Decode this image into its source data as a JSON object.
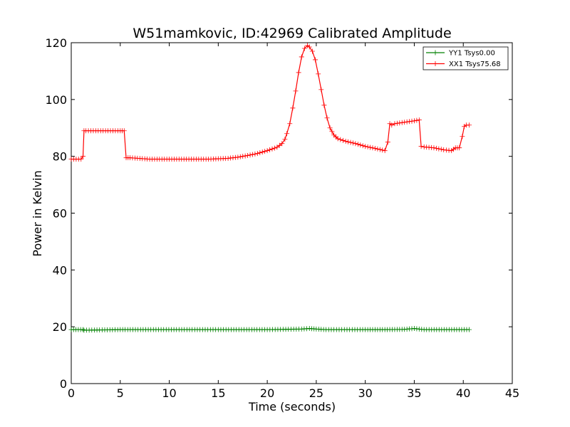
{
  "chart_data": {
    "type": "line",
    "title": "W51mamkovic, ID:42969 Calibrated Amplitude",
    "xlabel": "Time (seconds)",
    "ylabel": "Power in Kelvin",
    "xlim": [
      0,
      45
    ],
    "ylim": [
      0,
      120
    ],
    "xticks": [
      "0",
      "5",
      "10",
      "15",
      "20",
      "25",
      "30",
      "35",
      "40",
      "45"
    ],
    "yticks": [
      "0",
      "20",
      "40",
      "60",
      "80",
      "100",
      "120"
    ],
    "grid": false,
    "legend_position": "top-right",
    "series": [
      {
        "name": "YY1 Tsys0.00",
        "color": "#008000",
        "marker": "+",
        "x": [
          0.0,
          1.2,
          1.3,
          5.0,
          5.5,
          11.0,
          15.0,
          20.0,
          23.5,
          24.3,
          25.0,
          26.0,
          30.0,
          32.0,
          34.0,
          35.0,
          36.0,
          40.6
        ],
        "y": [
          19.0,
          19.0,
          18.8,
          19.0,
          19.0,
          19.0,
          19.0,
          19.0,
          19.2,
          19.4,
          19.2,
          19.0,
          19.0,
          19.0,
          19.1,
          19.4,
          19.0,
          19.0
        ]
      },
      {
        "name": "XX1 Tsys75.68",
        "color": "#ff0000",
        "marker": "+",
        "x": [
          0.0,
          0.5,
          1.0,
          1.2,
          1.3,
          1.5,
          3.0,
          5.0,
          5.4,
          5.6,
          6.0,
          8.0,
          10.0,
          12.0,
          14.0,
          16.0,
          17.0,
          18.0,
          19.0,
          20.0,
          20.5,
          21.0,
          21.5,
          21.8,
          22.0,
          22.3,
          22.6,
          22.9,
          23.2,
          23.5,
          23.8,
          24.1,
          24.3,
          24.6,
          24.9,
          25.2,
          25.5,
          25.8,
          26.1,
          26.4,
          26.8,
          27.2,
          28.0,
          29.0,
          30.0,
          31.0,
          32.0,
          32.3,
          32.5,
          32.7,
          33.0,
          34.0,
          35.0,
          35.5,
          35.7,
          36.0,
          37.0,
          38.0,
          38.8,
          39.2,
          39.6,
          39.9,
          40.1,
          40.3,
          40.6
        ],
        "y": [
          79.0,
          79.0,
          79.0,
          80.0,
          89.0,
          89.0,
          89.0,
          89.0,
          89.0,
          79.5,
          79.5,
          79.0,
          79.0,
          79.0,
          79.0,
          79.3,
          79.7,
          80.3,
          81.0,
          82.0,
          82.6,
          83.2,
          84.5,
          86.0,
          88.0,
          91.5,
          97.0,
          103.0,
          109.5,
          115.0,
          118.0,
          119.0,
          118.5,
          117.0,
          114.0,
          109.0,
          103.5,
          98.0,
          93.5,
          90.0,
          87.5,
          86.2,
          85.3,
          84.5,
          83.5,
          82.8,
          82.0,
          85.0,
          91.5,
          91.0,
          91.5,
          92.0,
          92.5,
          92.8,
          83.5,
          83.3,
          83.0,
          82.3,
          82.0,
          83.0,
          83.0,
          87.0,
          90.5,
          91.0,
          91.0
        ]
      }
    ]
  }
}
